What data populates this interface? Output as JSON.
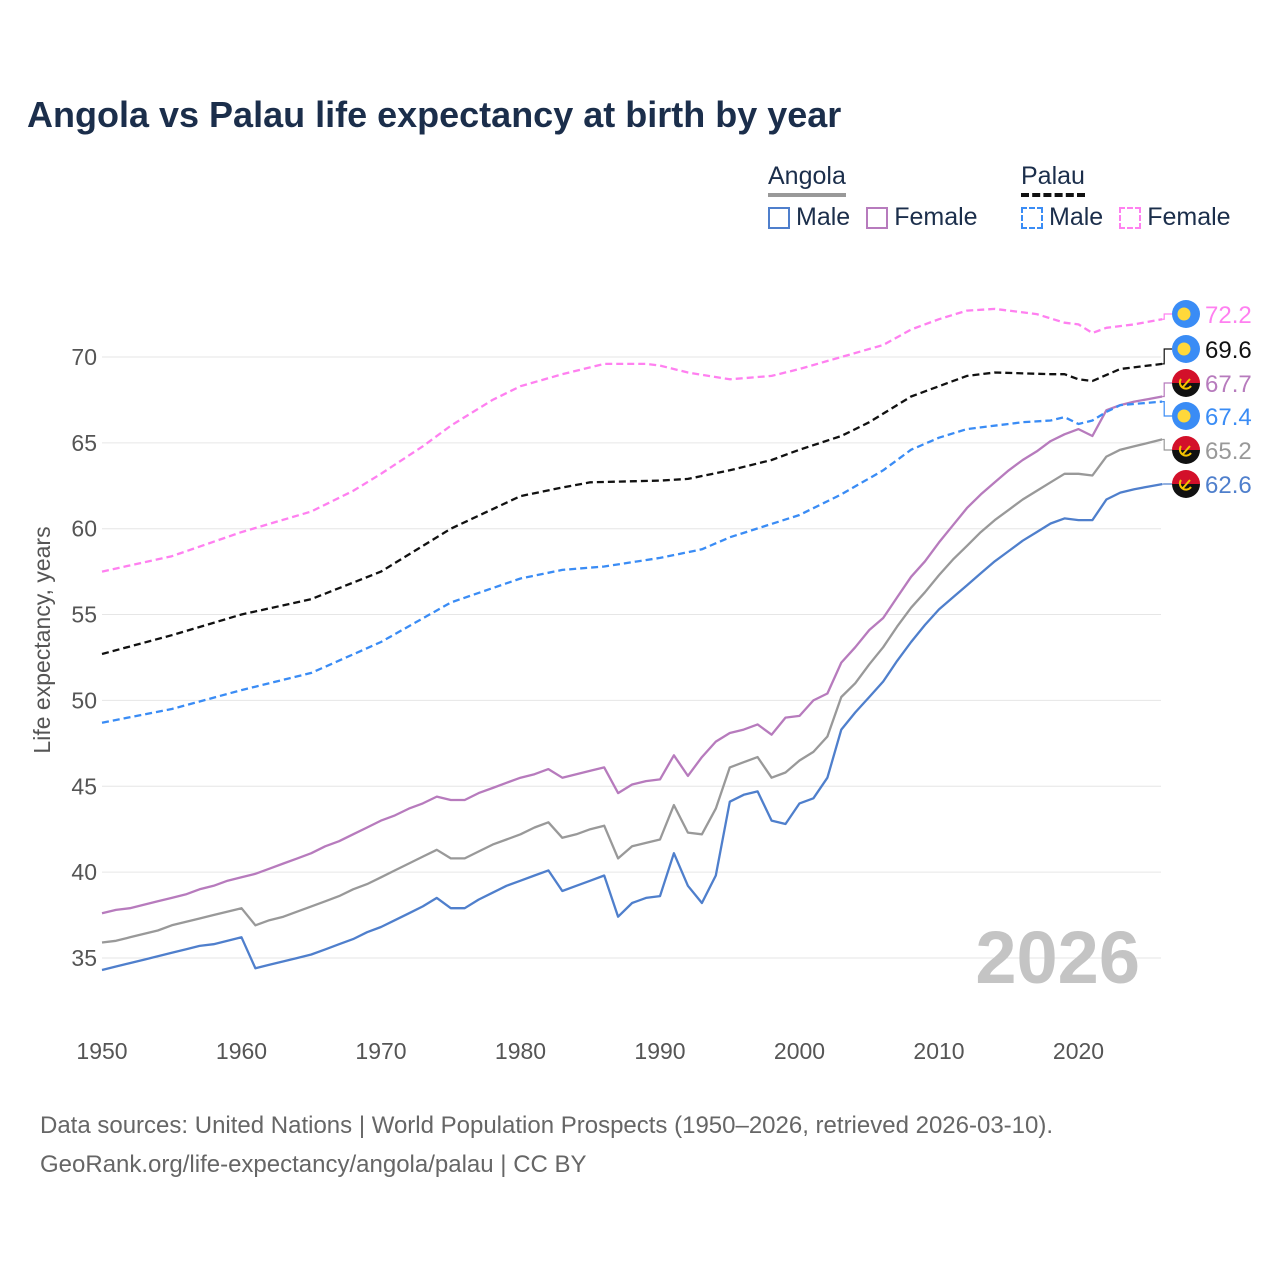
{
  "chart_data": {
    "type": "line",
    "title": "Angola vs Palau life expectancy at birth by year",
    "xlabel": "",
    "ylabel": "Life expectancy, years",
    "xlim": [
      1950,
      2026
    ],
    "ylim": [
      32.5,
      73.5
    ],
    "x_ticks": [
      "1950",
      "1960",
      "1970",
      "1980",
      "1990",
      "2000",
      "2010",
      "2020"
    ],
    "y_ticks": [
      "35",
      "40",
      "45",
      "50",
      "55",
      "60",
      "65",
      "70"
    ],
    "grid": true,
    "year_watermark": "2026",
    "legend": {
      "placement": "top-right",
      "groups": [
        {
          "name": "Angola",
          "items": [
            "Male",
            "Female"
          ]
        },
        {
          "name": "Palau",
          "items": [
            "Male",
            "Female"
          ]
        }
      ]
    },
    "series": [
      {
        "name": "Palau Female",
        "country": "Palau",
        "color": "#ff80f0",
        "dashed": true,
        "end_label": "72.2",
        "x": [
          1950,
          1955,
          1960,
          1965,
          1968,
          1970,
          1973,
          1975,
          1978,
          1980,
          1983,
          1986,
          1989,
          1990,
          1992,
          1995,
          1998,
          2000,
          2003,
          2006,
          2008,
          2010,
          2012,
          2014,
          2017,
          2019,
          2020,
          2021,
          2022,
          2024,
          2026
        ],
        "y": [
          57.5,
          58.4,
          59.8,
          61.0,
          62.2,
          63.2,
          64.8,
          66.0,
          67.5,
          68.3,
          69.0,
          69.6,
          69.6,
          69.5,
          69.1,
          68.7,
          68.9,
          69.3,
          70.0,
          70.7,
          71.6,
          72.2,
          72.7,
          72.8,
          72.5,
          72.0,
          71.9,
          71.4,
          71.7,
          71.9,
          72.2
        ]
      },
      {
        "name": "Palau",
        "country": "Palau",
        "color": "#111111",
        "dashed": true,
        "end_label": "69.6",
        "x": [
          1950,
          1955,
          1960,
          1965,
          1970,
          1975,
          1980,
          1983,
          1985,
          1990,
          1992,
          1995,
          1998,
          2000,
          2003,
          2005,
          2008,
          2010,
          2012,
          2014,
          2018,
          2019,
          2020,
          2021,
          2023,
          2026
        ],
        "y": [
          52.7,
          53.8,
          55.0,
          55.9,
          57.5,
          60.0,
          61.9,
          62.4,
          62.7,
          62.8,
          62.9,
          63.4,
          64.0,
          64.6,
          65.4,
          66.2,
          67.7,
          68.3,
          68.9,
          69.1,
          69.0,
          69.0,
          68.7,
          68.6,
          69.3,
          69.6
        ]
      },
      {
        "name": "Angola Female",
        "country": "Angola",
        "color": "#b77bbd",
        "dashed": false,
        "end_label": "67.7",
        "x": [
          1950,
          1951,
          1952,
          1953,
          1954,
          1955,
          1956,
          1957,
          1958,
          1959,
          1960,
          1961,
          1962,
          1963,
          1964,
          1965,
          1966,
          1967,
          1968,
          1969,
          1970,
          1971,
          1972,
          1973,
          1974,
          1975,
          1976,
          1977,
          1978,
          1979,
          1980,
          1981,
          1982,
          1983,
          1984,
          1985,
          1986,
          1987,
          1988,
          1989,
          1990,
          1991,
          1992,
          1993,
          1994,
          1995,
          1996,
          1997,
          1998,
          1999,
          2000,
          2001,
          2002,
          2003,
          2004,
          2005,
          2006,
          2007,
          2008,
          2009,
          2010,
          2011,
          2012,
          2013,
          2014,
          2015,
          2016,
          2017,
          2018,
          2019,
          2020,
          2021,
          2022,
          2023,
          2024,
          2025,
          2026
        ],
        "y": [
          37.6,
          37.8,
          37.9,
          38.1,
          38.3,
          38.5,
          38.7,
          39.0,
          39.2,
          39.5,
          39.7,
          39.9,
          40.2,
          40.5,
          40.8,
          41.1,
          41.5,
          41.8,
          42.2,
          42.6,
          43.0,
          43.3,
          43.7,
          44.0,
          44.4,
          44.2,
          44.2,
          44.6,
          44.9,
          45.2,
          45.5,
          45.7,
          46.0,
          45.5,
          45.7,
          45.9,
          46.1,
          44.6,
          45.1,
          45.3,
          45.4,
          46.8,
          45.6,
          46.7,
          47.6,
          48.1,
          48.3,
          48.6,
          48.0,
          49.0,
          49.1,
          50.0,
          50.4,
          52.2,
          53.1,
          54.1,
          54.8,
          56.0,
          57.2,
          58.1,
          59.2,
          60.2,
          61.2,
          62.0,
          62.7,
          63.4,
          64.0,
          64.5,
          65.1,
          65.5,
          65.8,
          65.4,
          66.9,
          67.2,
          67.4,
          67.55,
          67.7
        ]
      },
      {
        "name": "Palau Male",
        "country": "Palau",
        "color": "#3a8cf5",
        "dashed": true,
        "end_label": "67.4",
        "x": [
          1950,
          1955,
          1960,
          1965,
          1970,
          1975,
          1980,
          1983,
          1986,
          1990,
          1993,
          1995,
          2000,
          2003,
          2006,
          2008,
          2010,
          2012,
          2016,
          2018,
          2019,
          2020,
          2021,
          2022,
          2023,
          2026
        ],
        "y": [
          48.7,
          49.5,
          50.6,
          51.6,
          53.4,
          55.7,
          57.1,
          57.6,
          57.8,
          58.3,
          58.8,
          59.5,
          60.8,
          62.0,
          63.4,
          64.6,
          65.3,
          65.8,
          66.2,
          66.3,
          66.5,
          66.1,
          66.3,
          66.8,
          67.2,
          67.4
        ]
      },
      {
        "name": "Angola",
        "country": "Angola",
        "color": "#999999",
        "dashed": false,
        "end_label": "65.2",
        "x": [
          1950,
          1951,
          1952,
          1953,
          1954,
          1955,
          1956,
          1957,
          1958,
          1959,
          1960,
          1961,
          1962,
          1963,
          1964,
          1965,
          1966,
          1967,
          1968,
          1969,
          1970,
          1971,
          1972,
          1973,
          1974,
          1975,
          1976,
          1977,
          1978,
          1979,
          1980,
          1981,
          1982,
          1983,
          1984,
          1985,
          1986,
          1987,
          1988,
          1989,
          1990,
          1991,
          1992,
          1993,
          1994,
          1995,
          1996,
          1997,
          1998,
          1999,
          2000,
          2001,
          2002,
          2003,
          2004,
          2005,
          2006,
          2007,
          2008,
          2009,
          2010,
          2011,
          2012,
          2013,
          2014,
          2015,
          2016,
          2017,
          2018,
          2019,
          2020,
          2021,
          2022,
          2023,
          2024,
          2025,
          2026
        ],
        "y": [
          35.9,
          36.0,
          36.2,
          36.4,
          36.6,
          36.9,
          37.1,
          37.3,
          37.5,
          37.7,
          37.9,
          36.9,
          37.2,
          37.4,
          37.7,
          38.0,
          38.3,
          38.6,
          39.0,
          39.3,
          39.7,
          40.1,
          40.5,
          40.9,
          41.3,
          40.8,
          40.8,
          41.2,
          41.6,
          41.9,
          42.2,
          42.6,
          42.9,
          42.0,
          42.2,
          42.5,
          42.7,
          40.8,
          41.5,
          41.7,
          41.9,
          43.9,
          42.3,
          42.2,
          43.7,
          46.1,
          46.4,
          46.7,
          45.5,
          45.8,
          46.5,
          47.0,
          47.9,
          50.2,
          51.0,
          52.1,
          53.1,
          54.3,
          55.4,
          56.3,
          57.3,
          58.2,
          59.0,
          59.8,
          60.5,
          61.1,
          61.7,
          62.2,
          62.7,
          63.2,
          63.2,
          63.1,
          64.2,
          64.6,
          64.8,
          65.0,
          65.2
        ]
      },
      {
        "name": "Angola Male",
        "country": "Angola",
        "color": "#4f7fcc",
        "dashed": false,
        "end_label": "62.6",
        "x": [
          1950,
          1951,
          1952,
          1953,
          1954,
          1955,
          1956,
          1957,
          1958,
          1959,
          1960,
          1961,
          1962,
          1963,
          1964,
          1965,
          1966,
          1967,
          1968,
          1969,
          1970,
          1971,
          1972,
          1973,
          1974,
          1975,
          1976,
          1977,
          1978,
          1979,
          1980,
          1981,
          1982,
          1983,
          1984,
          1985,
          1986,
          1987,
          1988,
          1989,
          1990,
          1991,
          1992,
          1993,
          1994,
          1995,
          1996,
          1997,
          1998,
          1999,
          2000,
          2001,
          2002,
          2003,
          2004,
          2005,
          2006,
          2007,
          2008,
          2009,
          2010,
          2011,
          2012,
          2013,
          2014,
          2015,
          2016,
          2017,
          2018,
          2019,
          2020,
          2021,
          2022,
          2023,
          2024,
          2025,
          2026
        ],
        "y": [
          34.3,
          34.5,
          34.7,
          34.9,
          35.1,
          35.3,
          35.5,
          35.7,
          35.8,
          36.0,
          36.2,
          34.4,
          34.6,
          34.8,
          35.0,
          35.2,
          35.5,
          35.8,
          36.1,
          36.5,
          36.8,
          37.2,
          37.6,
          38.0,
          38.5,
          37.9,
          37.9,
          38.4,
          38.8,
          39.2,
          39.5,
          39.8,
          40.1,
          38.9,
          39.2,
          39.5,
          39.8,
          37.4,
          38.2,
          38.5,
          38.6,
          41.1,
          39.2,
          38.2,
          39.8,
          44.1,
          44.5,
          44.7,
          43.0,
          42.8,
          44.0,
          44.3,
          45.5,
          48.3,
          49.3,
          50.2,
          51.1,
          52.3,
          53.4,
          54.4,
          55.3,
          56.0,
          56.7,
          57.4,
          58.1,
          58.7,
          59.3,
          59.8,
          60.3,
          60.6,
          60.5,
          60.5,
          61.7,
          62.1,
          62.3,
          62.45,
          62.6
        ]
      }
    ]
  },
  "footer": {
    "line1": "Data sources: United Nations | World Population Prospects (1950–2026, retrieved 2026-03-10).",
    "line2": "GeoRank.org/life-expectancy/angola/palau | CC BY"
  },
  "icons": {
    "palau": "palau-flag-icon",
    "angola": "angola-flag-icon"
  }
}
